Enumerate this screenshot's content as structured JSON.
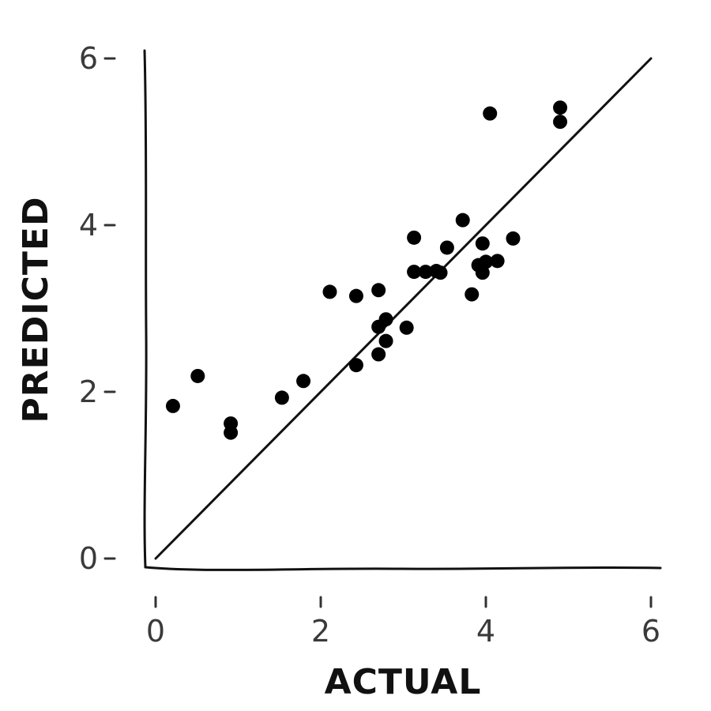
{
  "chart_data": {
    "type": "scatter",
    "title": "",
    "xlabel": "ACTUAL",
    "ylabel": "PREDICTED",
    "xlim": [
      0,
      6
    ],
    "ylim": [
      0,
      6
    ],
    "xticks": [
      0,
      2,
      4,
      6
    ],
    "yticks": [
      0,
      2,
      4,
      6
    ],
    "xtick_labels": [
      "0",
      "2",
      "4",
      "6"
    ],
    "ytick_labels": [
      "0",
      "2",
      "4",
      "6"
    ],
    "grid": false,
    "legend": "none",
    "reference_line": {
      "x": [
        0,
        6
      ],
      "y": [
        0,
        6
      ]
    },
    "point_color": "#000000",
    "points": [
      {
        "x": 0.21,
        "y": 1.83
      },
      {
        "x": 0.51,
        "y": 2.19
      },
      {
        "x": 0.91,
        "y": 1.62
      },
      {
        "x": 0.91,
        "y": 1.51
      },
      {
        "x": 1.53,
        "y": 1.93
      },
      {
        "x": 1.79,
        "y": 2.13
      },
      {
        "x": 2.11,
        "y": 3.2
      },
      {
        "x": 2.43,
        "y": 3.15
      },
      {
        "x": 2.43,
        "y": 2.32
      },
      {
        "x": 2.7,
        "y": 3.22
      },
      {
        "x": 2.7,
        "y": 2.78
      },
      {
        "x": 2.7,
        "y": 2.45
      },
      {
        "x": 2.79,
        "y": 2.87
      },
      {
        "x": 2.79,
        "y": 2.61
      },
      {
        "x": 3.04,
        "y": 2.77
      },
      {
        "x": 3.13,
        "y": 3.85
      },
      {
        "x": 3.13,
        "y": 3.44
      },
      {
        "x": 3.27,
        "y": 3.44
      },
      {
        "x": 3.4,
        "y": 3.45
      },
      {
        "x": 3.45,
        "y": 3.43
      },
      {
        "x": 3.53,
        "y": 3.73
      },
      {
        "x": 3.72,
        "y": 4.06
      },
      {
        "x": 3.83,
        "y": 3.17
      },
      {
        "x": 3.91,
        "y": 3.52
      },
      {
        "x": 3.96,
        "y": 3.78
      },
      {
        "x": 3.96,
        "y": 3.43
      },
      {
        "x": 4.0,
        "y": 3.56
      },
      {
        "x": 4.05,
        "y": 5.34
      },
      {
        "x": 4.14,
        "y": 3.57
      },
      {
        "x": 4.33,
        "y": 3.84
      },
      {
        "x": 4.9,
        "y": 5.41
      },
      {
        "x": 4.9,
        "y": 5.24
      }
    ]
  }
}
